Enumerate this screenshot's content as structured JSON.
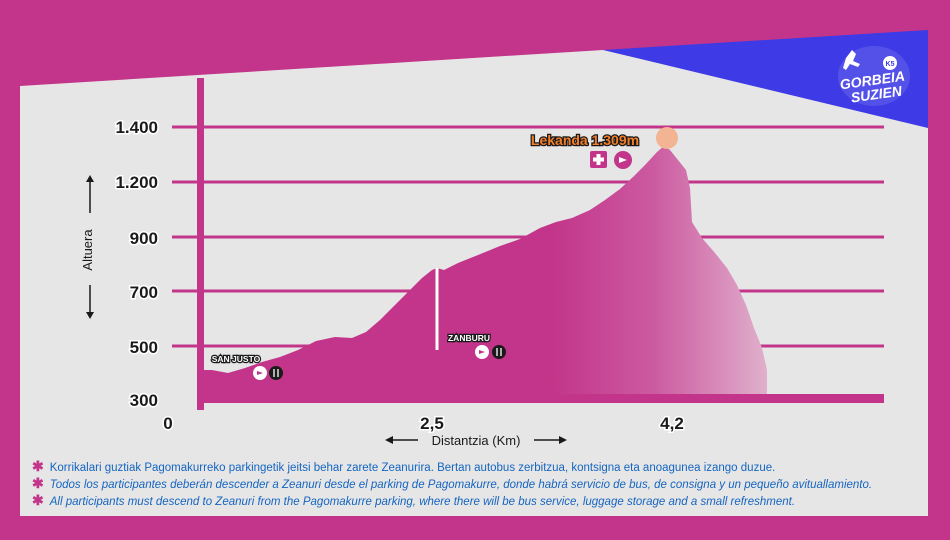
{
  "chart_data": {
    "type": "area",
    "title": "",
    "xlabel": "Distantzia (Km)",
    "ylabel": "Altuera",
    "x_ticks": [
      "0",
      "2,5",
      "4,2"
    ],
    "y_ticks": [
      "300",
      "500",
      "700",
      "900",
      "1.200",
      "1.400"
    ],
    "peak_label": "Lekanda 1.309m",
    "points": [
      {
        "name": "SAN JUSTO",
        "icons": [
          "drink-icon",
          "food-icon"
        ]
      },
      {
        "name": "ZANBURU",
        "icons": [
          "drink-icon",
          "food-icon"
        ]
      }
    ],
    "peak_icons": [
      "medical-cross-icon",
      "drink-icon"
    ]
  },
  "logo": {
    "line1": "GORBEIA",
    "line2": "SUZIEN",
    "badge": "K5"
  },
  "notes": [
    "Korrikalari guztiak Pagomakurreko parkingetik jeitsi behar zarete Zeanurira. Bertan autobus zerbitzua, kontsigna eta anoagunea izango duzue.",
    "Todos los participantes deberán descender a Zeanuri desde el parking de Pagomakurre, donde habrá servicio de bus, de consigna y un pequeño avituallamiento.",
    "All participants must descend to Zeanuri from the Pagomakurre parking, where there will be bus service, luggage storage and a small refreshment."
  ],
  "colors": {
    "bg": "#c2358a",
    "panel": "#e6e6e6",
    "accent": "#3d3ae6",
    "fill": "#c2358a",
    "peak": "#f2b493",
    "note_text": "#1565c0"
  }
}
